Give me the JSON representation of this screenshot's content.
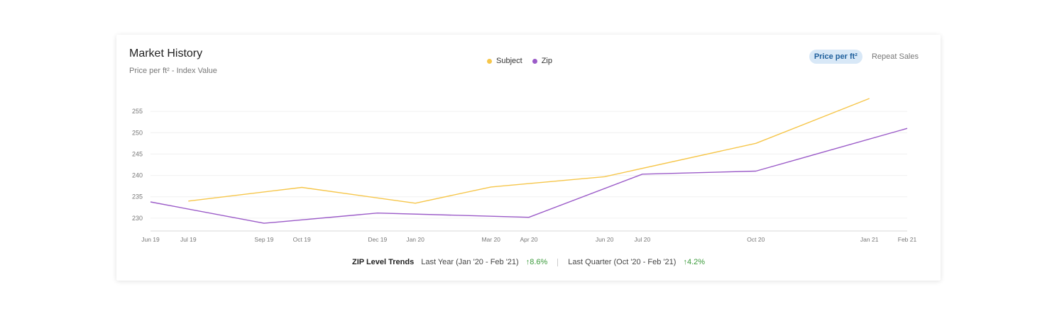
{
  "header": {
    "title": "Market History",
    "subtitle": "Price per ft² - Index Value"
  },
  "legend": [
    {
      "label": "Subject",
      "color": "#F6C64A"
    },
    {
      "label": "Zip",
      "color": "#9B5BC8"
    }
  ],
  "toggle": {
    "active_label": "Price per ft²",
    "inactive_label": "Repeat Sales"
  },
  "chart_data": {
    "type": "line",
    "title": "",
    "xlabel": "",
    "ylabel": "",
    "grid": true,
    "legend_position": "top-center",
    "ylim": [
      227,
      258
    ],
    "y_ticks": [
      230,
      235,
      240,
      245,
      250,
      255
    ],
    "x_ticks": [
      "Jun 19",
      "Jul 19",
      "Sep 19",
      "Oct 19",
      "Dec 19",
      "Jan 20",
      "Mar 20",
      "Apr 20",
      "Jun 20",
      "Jul 20",
      "Oct 20",
      "Jan 21",
      "Feb 21"
    ],
    "series": [
      {
        "name": "Subject",
        "color": "#F6C64A",
        "points": [
          {
            "x": "Jul 19",
            "y": 234.0
          },
          {
            "x": "Oct 19",
            "y": 237.2
          },
          {
            "x": "Jan 20",
            "y": 233.5
          },
          {
            "x": "Mar 20",
            "y": 237.3
          },
          {
            "x": "Jun 20",
            "y": 239.7
          },
          {
            "x": "Oct 20",
            "y": 247.5
          },
          {
            "x": "Jan 21",
            "y": 258.0
          }
        ]
      },
      {
        "name": "Zip",
        "color": "#9B5BC8",
        "points": [
          {
            "x": "Jun 19",
            "y": 233.8
          },
          {
            "x": "Sep 19",
            "y": 228.8
          },
          {
            "x": "Dec 19",
            "y": 231.2
          },
          {
            "x": "Apr 20",
            "y": 230.2
          },
          {
            "x": "Jul 20",
            "y": 240.3
          },
          {
            "x": "Oct 20",
            "y": 241.0
          },
          {
            "x": "Feb 21",
            "y": 251.0
          }
        ]
      }
    ]
  },
  "footer": {
    "label": "ZIP Level Trends",
    "last_year_label": "Last Year (Jan '20 - Feb '21)",
    "last_year_change": "8.6%",
    "last_quarter_label": "Last Quarter (Oct '20 - Feb '21)",
    "last_quarter_change": "4.2%",
    "arrow": "↑"
  }
}
